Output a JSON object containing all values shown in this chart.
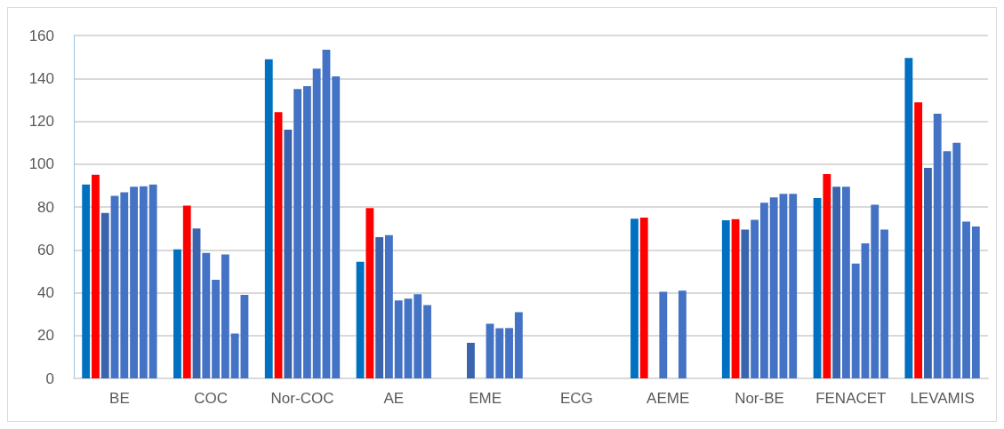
{
  "chart_data": {
    "type": "bar",
    "categories": [
      "BE",
      "COC",
      "Nor-COC",
      "AE",
      "EME",
      "ECG",
      "AEME",
      "Nor-BE",
      "FENACET",
      "LEVAMIS"
    ],
    "series": [
      {
        "color": "#0070c0",
        "values": [
          90.5,
          60.2,
          148.9,
          54.4,
          null,
          null,
          74.5,
          73.8,
          84.1,
          149.5
        ]
      },
      {
        "color": "#ff0000",
        "values": [
          95,
          80.6,
          124.3,
          79.5,
          null,
          null,
          75,
          74.3,
          95.3,
          128.8
        ]
      },
      {
        "color": "#3a64ad",
        "values": [
          77.2,
          69.9,
          116.1,
          65.9,
          16.6,
          null,
          null,
          69.4,
          89.4,
          98.2
        ]
      },
      {
        "color": "#4472c4",
        "values": [
          85.2,
          58.5,
          135,
          66.8,
          null,
          null,
          40.4,
          74,
          89.4,
          123.5
        ]
      },
      {
        "color": "#4472c4",
        "values": [
          86.8,
          46,
          136.4,
          36.4,
          25.5,
          null,
          null,
          82,
          53.6,
          106
        ]
      },
      {
        "color": "#4472c4",
        "values": [
          89.4,
          57.8,
          144.6,
          37.2,
          23.4,
          null,
          40.9,
          84.5,
          63,
          109.9
        ]
      },
      {
        "color": "#4472c4",
        "values": [
          89.6,
          20.9,
          153.4,
          39.3,
          23.5,
          null,
          null,
          86.1,
          81,
          73.2
        ]
      },
      {
        "color": "#4472c4",
        "values": [
          90.5,
          39,
          140.9,
          34.2,
          30.9,
          null,
          null,
          86.1,
          69.4,
          70.9
        ]
      }
    ],
    "ylim": [
      0,
      160
    ],
    "yticks": [
      0,
      20,
      40,
      60,
      80,
      100,
      120,
      140,
      160
    ],
    "grid": "y"
  }
}
